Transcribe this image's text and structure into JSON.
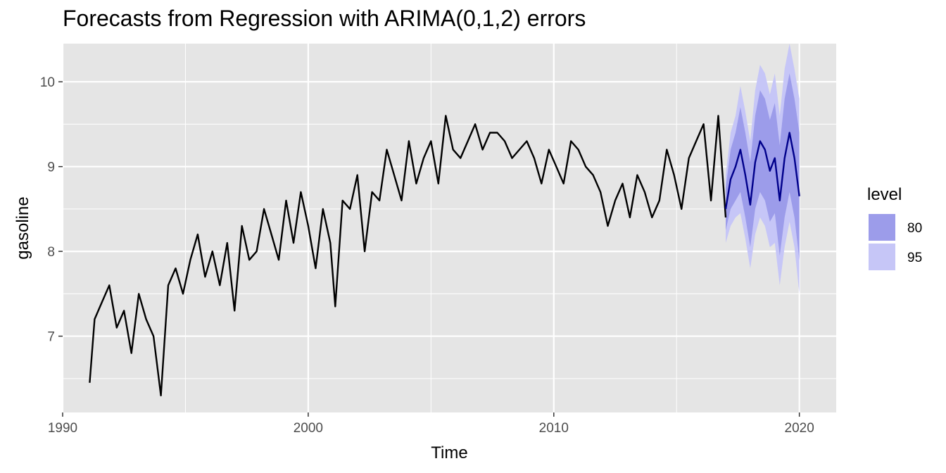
{
  "chart_data": {
    "type": "line",
    "title": "Forecasts from Regression with ARIMA(0,1,2) errors",
    "xlabel": "Time",
    "ylabel": "gasoline",
    "xlim": [
      1990,
      2021.5
    ],
    "ylim": [
      6.1,
      10.45
    ],
    "x_ticks": [
      1990,
      2000,
      2010,
      2020
    ],
    "y_ticks": [
      7,
      8,
      9,
      10
    ],
    "grid": true,
    "legend": {
      "title": "level",
      "position": "right",
      "entries": [
        {
          "label": "80",
          "color": "#9c9cea"
        },
        {
          "label": "95",
          "color": "#c6c6f7"
        }
      ]
    },
    "colors": {
      "panel": "#e5e5e5",
      "grid": "#ffffff",
      "history": "#000000",
      "forecast": "#00008b",
      "pi80": "#9c9cea",
      "pi95": "#c6c6f7"
    },
    "series": [
      {
        "name": "gasoline",
        "x": [
          1991.1,
          1991.3,
          1991.6,
          1991.9,
          1992.2,
          1992.5,
          1992.8,
          1993.1,
          1993.4,
          1993.7,
          1994.0,
          1994.3,
          1994.6,
          1994.9,
          1995.2,
          1995.5,
          1995.8,
          1996.1,
          1996.4,
          1996.7,
          1997.0,
          1997.3,
          1997.6,
          1997.9,
          1998.2,
          1998.5,
          1998.8,
          1999.1,
          1999.4,
          1999.7,
          2000.0,
          2000.3,
          2000.6,
          2000.9,
          2001.1,
          2001.4,
          2001.7,
          2002.0,
          2002.3,
          2002.6,
          2002.9,
          2003.2,
          2003.5,
          2003.8,
          2004.1,
          2004.4,
          2004.7,
          2005.0,
          2005.3,
          2005.6,
          2005.9,
          2006.2,
          2006.5,
          2006.8,
          2007.1,
          2007.4,
          2007.7,
          2008.0,
          2008.3,
          2008.6,
          2008.9,
          2009.2,
          2009.5,
          2009.8,
          2010.1,
          2010.4,
          2010.7,
          2011.0,
          2011.3,
          2011.6,
          2011.9,
          2012.2,
          2012.5,
          2012.8,
          2013.1,
          2013.4,
          2013.7,
          2014.0,
          2014.3,
          2014.6,
          2014.9,
          2015.2,
          2015.5,
          2015.8,
          2016.1,
          2016.4,
          2016.7,
          2017.0
        ],
        "values": [
          6.45,
          7.2,
          7.4,
          7.6,
          7.1,
          7.3,
          6.8,
          7.5,
          7.2,
          7.0,
          6.3,
          7.6,
          7.8,
          7.5,
          7.9,
          8.2,
          7.7,
          8.0,
          7.6,
          8.1,
          7.3,
          8.3,
          7.9,
          8.0,
          8.5,
          8.2,
          7.9,
          8.6,
          8.1,
          8.7,
          8.3,
          7.8,
          8.5,
          8.1,
          7.35,
          8.6,
          8.5,
          8.9,
          8.0,
          8.7,
          8.6,
          9.2,
          8.9,
          8.6,
          9.3,
          8.8,
          9.1,
          9.3,
          8.8,
          9.6,
          9.2,
          9.1,
          9.3,
          9.5,
          9.2,
          9.4,
          9.4,
          9.3,
          9.1,
          9.2,
          9.3,
          9.1,
          8.8,
          9.2,
          9.0,
          8.8,
          9.3,
          9.2,
          9.0,
          8.9,
          8.7,
          8.3,
          8.6,
          8.8,
          8.4,
          8.9,
          8.7,
          8.4,
          8.6,
          9.2,
          8.9,
          8.5,
          9.1,
          9.3,
          9.5,
          8.6,
          9.6,
          8.4
        ]
      },
      {
        "name": "forecast",
        "x": [
          2017.0,
          2017.2,
          2017.4,
          2017.6,
          2017.8,
          2018.0,
          2018.2,
          2018.4,
          2018.6,
          2018.8,
          2019.0,
          2019.2,
          2019.4,
          2019.6,
          2019.8,
          2020.0
        ],
        "values": [
          8.5,
          8.85,
          9.0,
          9.2,
          8.9,
          8.55,
          9.05,
          9.3,
          9.2,
          8.95,
          9.1,
          8.6,
          9.1,
          9.4,
          9.1,
          8.65
        ],
        "lower80": [
          8.25,
          8.5,
          8.6,
          8.7,
          8.4,
          8.05,
          8.5,
          8.7,
          8.6,
          8.35,
          8.45,
          7.95,
          8.4,
          8.7,
          8.4,
          7.9
        ],
        "upper80": [
          8.75,
          9.2,
          9.4,
          9.7,
          9.4,
          9.05,
          9.6,
          9.9,
          9.8,
          9.55,
          9.75,
          9.25,
          9.8,
          10.1,
          9.8,
          9.4
        ],
        "lower95": [
          8.1,
          8.3,
          8.4,
          8.45,
          8.15,
          7.8,
          8.2,
          8.4,
          8.3,
          8.05,
          8.1,
          7.6,
          8.05,
          8.35,
          8.05,
          7.5
        ],
        "upper95": [
          8.9,
          9.4,
          9.6,
          9.95,
          9.65,
          9.3,
          9.9,
          10.2,
          10.1,
          9.85,
          10.1,
          9.6,
          10.15,
          10.45,
          10.15,
          9.8
        ]
      }
    ]
  }
}
